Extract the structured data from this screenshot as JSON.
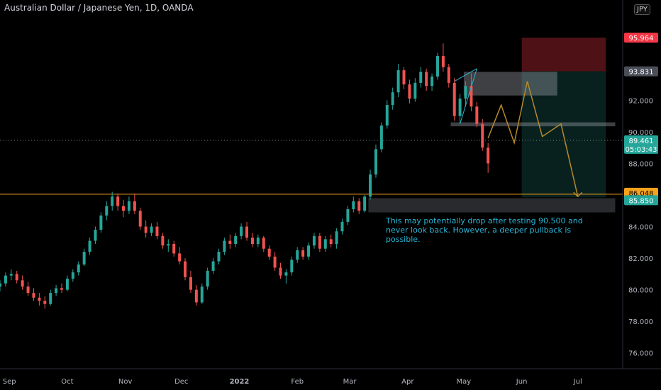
{
  "header": {
    "title": "Australian Dollar / Japanese Yen, 1D, OANDA",
    "currency": "JPY"
  },
  "note": {
    "text": "This may potentially drop after testing 90.500 and never look back. However, a deeper pullback is possible."
  },
  "colors": {
    "up": "#26a69a",
    "down": "#ef5350",
    "stop": "#f23645",
    "target": "#f7a21b",
    "axis_bg": "#000000",
    "drawing": "#b58a2a",
    "channel": "#2cb5d3"
  },
  "chart_data": {
    "type": "candlestick",
    "title": "Australian Dollar / Japanese Yen, 1D, OANDA",
    "x_ticks": [
      "Sep",
      "Oct",
      "Nov",
      "Dec",
      "2022",
      "Feb",
      "Mar",
      "Apr",
      "May",
      "Jun",
      "Jul"
    ],
    "y_ticks": [
      76.0,
      78.0,
      80.0,
      82.0,
      84.0,
      86.0,
      88.0,
      90.0,
      92.0
    ],
    "ylim": [
      75.0,
      97.0
    ],
    "price_labels": [
      {
        "value": "95.964",
        "role": "stop"
      },
      {
        "value": "93.831",
        "role": "entry"
      },
      {
        "value": "89.461",
        "role": "last",
        "countdown": "05:03:43"
      },
      {
        "value": "86.048",
        "role": "horizontal-line"
      },
      {
        "value": "85.850",
        "role": "target"
      }
    ],
    "horizontal_line": 86.048,
    "last_price": 89.461,
    "zones": [
      {
        "name": "resistance",
        "y_low": 92.3,
        "y_high": 93.8
      },
      {
        "name": "support",
        "y_low": 90.35,
        "y_high": 90.6
      },
      {
        "name": "demand",
        "y_low": 84.9,
        "y_high": 85.8
      }
    ],
    "trade": {
      "entry": 93.831,
      "stop": 95.964,
      "target": 85.85
    },
    "projection": [
      {
        "date": "2022-05-14",
        "y": 89.6
      },
      {
        "date": "2022-05-21",
        "y": 91.7
      },
      {
        "date": "2022-05-28",
        "y": 89.3
      },
      {
        "date": "2022-06-04",
        "y": 93.2
      },
      {
        "date": "2022-06-12",
        "y": 89.7
      },
      {
        "date": "2022-06-22",
        "y": 90.5
      },
      {
        "date": "2022-07-01",
        "y": 85.9
      }
    ],
    "candles": [
      [
        "2021-08-26",
        80.2,
        80.6,
        79.9,
        80.4
      ],
      [
        "2021-08-29",
        80.4,
        81.1,
        80.2,
        80.9
      ],
      [
        "2021-09-01",
        80.9,
        81.3,
        80.6,
        81.0
      ],
      [
        "2021-09-04",
        81.0,
        81.2,
        80.4,
        80.6
      ],
      [
        "2021-09-07",
        80.6,
        80.9,
        80.0,
        80.2
      ],
      [
        "2021-09-10",
        80.2,
        80.5,
        79.6,
        79.8
      ],
      [
        "2021-09-13",
        79.8,
        80.1,
        79.3,
        79.5
      ],
      [
        "2021-09-16",
        79.5,
        79.8,
        79.0,
        79.3
      ],
      [
        "2021-09-19",
        79.3,
        79.6,
        78.8,
        79.1
      ],
      [
        "2021-09-22",
        79.1,
        80.0,
        79.0,
        79.8
      ],
      [
        "2021-09-25",
        79.8,
        80.3,
        79.6,
        80.1
      ],
      [
        "2021-09-28",
        80.1,
        80.4,
        79.8,
        80.0
      ],
      [
        "2021-10-01",
        80.0,
        80.9,
        79.9,
        80.7
      ],
      [
        "2021-10-04",
        80.7,
        81.3,
        80.5,
        81.1
      ],
      [
        "2021-10-07",
        81.1,
        81.8,
        80.9,
        81.6
      ],
      [
        "2021-10-10",
        81.6,
        82.6,
        81.5,
        82.4
      ],
      [
        "2021-10-13",
        82.4,
        83.3,
        82.2,
        83.1
      ],
      [
        "2021-10-16",
        83.1,
        84.0,
        82.9,
        83.8
      ],
      [
        "2021-10-19",
        83.8,
        84.9,
        83.6,
        84.7
      ],
      [
        "2021-10-22",
        84.7,
        85.6,
        84.4,
        85.3
      ],
      [
        "2021-10-25",
        85.3,
        86.2,
        85.0,
        85.9
      ],
      [
        "2021-10-28",
        85.9,
        86.1,
        85.0,
        85.3
      ],
      [
        "2021-10-31",
        85.3,
        85.7,
        84.6,
        85.0
      ],
      [
        "2021-11-03",
        85.0,
        85.9,
        84.8,
        85.6
      ],
      [
        "2021-11-06",
        85.6,
        86.1,
        84.8,
        85.0
      ],
      [
        "2021-11-09",
        85.0,
        85.2,
        83.8,
        84.0
      ],
      [
        "2021-11-12",
        84.0,
        84.4,
        83.3,
        83.6
      ],
      [
        "2021-11-15",
        83.6,
        84.2,
        83.4,
        84.0
      ],
      [
        "2021-11-18",
        84.0,
        84.3,
        83.2,
        83.4
      ],
      [
        "2021-11-21",
        83.4,
        83.6,
        82.6,
        82.8
      ],
      [
        "2021-11-24",
        82.8,
        83.2,
        82.4,
        82.9
      ],
      [
        "2021-11-27",
        82.9,
        83.1,
        82.1,
        82.3
      ],
      [
        "2021-11-30",
        82.3,
        82.7,
        81.6,
        81.8
      ],
      [
        "2021-12-03",
        81.8,
        82.0,
        80.6,
        80.8
      ],
      [
        "2021-12-06",
        80.8,
        81.2,
        79.8,
        80.0
      ],
      [
        "2021-12-09",
        80.0,
        80.3,
        79.0,
        79.2
      ],
      [
        "2021-12-12",
        79.2,
        80.4,
        79.1,
        80.2
      ],
      [
        "2021-12-15",
        80.2,
        81.4,
        80.0,
        81.2
      ],
      [
        "2021-12-18",
        81.2,
        82.0,
        81.0,
        81.8
      ],
      [
        "2021-12-21",
        81.8,
        82.6,
        81.6,
        82.4
      ],
      [
        "2021-12-24",
        82.4,
        83.3,
        82.2,
        83.1
      ],
      [
        "2021-12-27",
        83.1,
        83.5,
        82.6,
        82.9
      ],
      [
        "2021-12-30",
        82.9,
        83.6,
        82.7,
        83.4
      ],
      [
        "2022-01-02",
        83.4,
        84.2,
        83.2,
        84.0
      ],
      [
        "2022-01-05",
        84.0,
        84.3,
        83.1,
        83.3
      ],
      [
        "2022-01-08",
        83.3,
        83.6,
        82.7,
        82.9
      ],
      [
        "2022-01-11",
        82.9,
        83.5,
        82.7,
        83.3
      ],
      [
        "2022-01-14",
        83.3,
        83.4,
        82.4,
        82.6
      ],
      [
        "2022-01-17",
        82.6,
        82.8,
        81.9,
        82.1
      ],
      [
        "2022-01-20",
        82.1,
        82.4,
        81.2,
        81.4
      ],
      [
        "2022-01-23",
        81.4,
        81.7,
        80.7,
        80.9
      ],
      [
        "2022-01-26",
        80.9,
        81.3,
        80.4,
        81.1
      ],
      [
        "2022-01-29",
        81.1,
        82.1,
        80.9,
        81.9
      ],
      [
        "2022-02-01",
        81.9,
        82.7,
        81.7,
        82.5
      ],
      [
        "2022-02-04",
        82.5,
        82.7,
        81.9,
        82.1
      ],
      [
        "2022-02-07",
        82.1,
        83.0,
        81.9,
        82.8
      ],
      [
        "2022-02-10",
        82.8,
        83.6,
        82.6,
        83.4
      ],
      [
        "2022-02-13",
        83.4,
        83.6,
        82.4,
        82.6
      ],
      [
        "2022-02-16",
        82.6,
        83.4,
        82.4,
        83.2
      ],
      [
        "2022-02-19",
        83.2,
        83.5,
        82.7,
        82.9
      ],
      [
        "2022-02-22",
        82.9,
        83.9,
        82.6,
        83.7
      ],
      [
        "2022-02-25",
        83.7,
        84.5,
        83.5,
        84.3
      ],
      [
        "2022-02-28",
        84.3,
        85.3,
        84.1,
        85.1
      ],
      [
        "2022-03-03",
        85.1,
        85.9,
        84.9,
        85.6
      ],
      [
        "2022-03-06",
        85.6,
        85.8,
        84.8,
        85.0
      ],
      [
        "2022-03-09",
        85.0,
        86.0,
        84.9,
        85.9
      ],
      [
        "2022-03-12",
        85.9,
        87.6,
        85.7,
        87.3
      ],
      [
        "2022-03-15",
        87.3,
        89.2,
        87.1,
        88.9
      ],
      [
        "2022-03-18",
        88.9,
        90.6,
        88.7,
        90.4
      ],
      [
        "2022-03-21",
        90.4,
        92.0,
        90.2,
        91.7
      ],
      [
        "2022-03-24",
        91.7,
        92.8,
        91.4,
        92.5
      ],
      [
        "2022-03-27",
        92.5,
        94.3,
        92.2,
        93.9
      ],
      [
        "2022-03-30",
        93.9,
        94.1,
        92.7,
        93.0
      ],
      [
        "2022-04-02",
        93.0,
        93.3,
        91.8,
        92.1
      ],
      [
        "2022-04-05",
        92.1,
        93.4,
        91.9,
        93.1
      ],
      [
        "2022-04-08",
        93.1,
        94.1,
        92.8,
        93.8
      ],
      [
        "2022-04-11",
        93.8,
        94.0,
        92.6,
        92.9
      ],
      [
        "2022-04-14",
        92.9,
        93.7,
        92.6,
        93.5
      ],
      [
        "2022-04-17",
        93.5,
        95.0,
        93.3,
        94.8
      ],
      [
        "2022-04-20",
        94.8,
        95.6,
        93.8,
        94.1
      ],
      [
        "2022-04-23",
        94.1,
        94.3,
        92.8,
        93.1
      ],
      [
        "2022-04-26",
        93.1,
        93.4,
        90.7,
        91.0
      ],
      [
        "2022-04-29",
        91.0,
        92.4,
        90.6,
        92.1
      ],
      [
        "2022-05-02",
        92.1,
        93.2,
        91.6,
        92.9
      ],
      [
        "2022-05-05",
        92.9,
        93.7,
        91.3,
        91.6
      ],
      [
        "2022-05-08",
        91.6,
        91.9,
        90.3,
        90.5
      ],
      [
        "2022-05-11",
        90.5,
        90.8,
        88.8,
        89.0
      ],
      [
        "2022-05-14",
        89.0,
        89.3,
        87.4,
        88.0
      ]
    ]
  }
}
